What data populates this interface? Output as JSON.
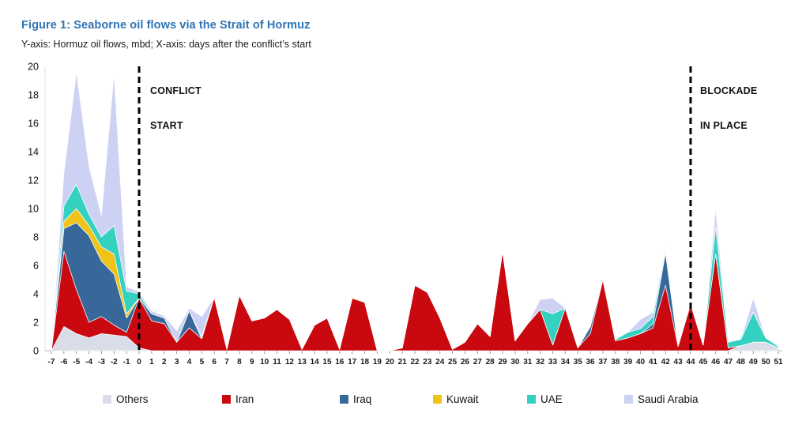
{
  "figure": {
    "title": "Figure 1: Seaborne oil flows via the Strait of Hormuz",
    "subtitle": "Y-axis: Hormuz oil flows, mbd; X-axis: days after the conflict’s start",
    "title_color": "#2e74b5"
  },
  "annotations": {
    "conflict": {
      "line1": "CONFLICT",
      "line2": "START",
      "day": 0
    },
    "blockade": {
      "line1": "BLOCKADE",
      "line2": "IN PLACE",
      "day": 44
    }
  },
  "chart_data": {
    "type": "area",
    "stacked": true,
    "title": "Figure 1: Seaborne oil flows via the Strait of Hormuz",
    "xlabel": "days after the conflict's start",
    "ylabel": "Hormuz oil flows, mbd",
    "xlim": [
      -7,
      51
    ],
    "ylim": [
      0,
      20
    ],
    "yticks": [
      0,
      2,
      4,
      6,
      8,
      10,
      12,
      14,
      16,
      18,
      20
    ],
    "grid": false,
    "legend_position": "bottom",
    "marker_lines": [
      {
        "day": 0,
        "label": "CONFLICT START"
      },
      {
        "day": 44,
        "label": "BLOCKADE IN PLACE"
      }
    ],
    "x": [
      -7,
      -6,
      -5,
      -4,
      -3,
      -2,
      -1,
      0,
      1,
      2,
      3,
      4,
      5,
      6,
      7,
      8,
      9,
      10,
      11,
      12,
      13,
      14,
      15,
      16,
      17,
      18,
      19,
      20,
      21,
      22,
      23,
      24,
      25,
      26,
      27,
      28,
      29,
      30,
      31,
      32,
      33,
      34,
      35,
      36,
      37,
      38,
      39,
      40,
      41,
      42,
      43,
      44,
      45,
      46,
      47,
      48,
      49,
      50,
      51
    ],
    "series": [
      {
        "name": "Others",
        "color": "#d9dde8",
        "values": [
          0,
          1.7,
          1.2,
          0.9,
          1.2,
          1.1,
          1.0,
          0.2,
          0,
          0,
          0,
          0,
          0,
          0,
          0,
          0,
          0,
          0,
          0,
          0,
          0,
          0,
          0,
          0,
          0,
          0,
          0,
          0,
          0,
          0,
          0,
          0,
          0,
          0,
          0,
          0,
          0,
          0,
          0,
          0,
          0,
          0,
          0,
          0,
          0,
          0,
          0,
          0,
          0,
          0,
          0,
          0,
          0,
          0,
          0,
          0.35,
          0.6,
          0.6,
          0.2
        ]
      },
      {
        "name": "Iran",
        "color": "#c9090f",
        "values": [
          0,
          5.3,
          3.1,
          1.1,
          1.2,
          0.7,
          0.3,
          3.5,
          2.1,
          1.9,
          0.6,
          1.6,
          0.85,
          3.75,
          0.1,
          3.9,
          2.1,
          2.3,
          2.9,
          2.2,
          0.1,
          1.8,
          2.3,
          0.1,
          3.7,
          3.4,
          0,
          0,
          0.2,
          4.6,
          4.1,
          2.3,
          0.1,
          0.6,
          1.9,
          1.0,
          7.0,
          0.7,
          1.9,
          2.9,
          0.4,
          3.0,
          0.2,
          1.2,
          5.0,
          0.7,
          0.9,
          1.2,
          1.6,
          4.6,
          0.3,
          3.3,
          0.4,
          6.8,
          0.2,
          0,
          0,
          0,
          0
        ]
      },
      {
        "name": "Iraq",
        "color": "#38689a",
        "values": [
          0,
          1.6,
          4.7,
          6.1,
          3.9,
          3.6,
          1.0,
          0,
          0.5,
          0.4,
          0,
          1.2,
          0,
          0,
          0,
          0,
          0,
          0,
          0,
          0,
          0,
          0,
          0,
          0,
          0,
          0,
          0,
          0,
          0,
          0,
          0,
          0,
          0,
          0,
          0,
          0,
          0,
          0,
          0,
          0,
          0,
          0,
          0,
          0.5,
          0,
          0,
          0,
          0,
          0.3,
          2.3,
          0,
          0,
          0,
          0,
          0,
          0,
          0,
          0,
          0
        ]
      },
      {
        "name": "Kuwait",
        "color": "#f0c319",
        "values": [
          0,
          0.5,
          1.0,
          0.7,
          1.0,
          1.4,
          0.3,
          0,
          0,
          0,
          0,
          0,
          0,
          0,
          0,
          0,
          0,
          0,
          0,
          0,
          0,
          0,
          0,
          0,
          0,
          0,
          0,
          0,
          0,
          0,
          0,
          0,
          0,
          0,
          0,
          0,
          0,
          0,
          0,
          0,
          0,
          0,
          0,
          0,
          0,
          0,
          0,
          0,
          0,
          0,
          0,
          0,
          0,
          0,
          0,
          0,
          0,
          0,
          0
        ]
      },
      {
        "name": "UAE",
        "color": "#34d1c1",
        "values": [
          0,
          1.1,
          1.7,
          0.8,
          0.7,
          2.0,
          1.6,
          0.3,
          0,
          0,
          0,
          0,
          0.15,
          0,
          0,
          0,
          0,
          0,
          0,
          0,
          0,
          0,
          0,
          0,
          0,
          0,
          0,
          0,
          0,
          0,
          0,
          0,
          0,
          0,
          0,
          0,
          0,
          0,
          0,
          0,
          2.2,
          0,
          0,
          0,
          0,
          0.1,
          0.4,
          0.35,
          0.5,
          0.2,
          0,
          0,
          0,
          1.9,
          0.4,
          0.45,
          2.1,
          0.3,
          0.1
        ]
      },
      {
        "name": "Saudi Arabia",
        "color": "#cdd1f4",
        "values": [
          0,
          2.3,
          7.9,
          3.4,
          1.5,
          10.7,
          0.3,
          0.15,
          0.2,
          0.15,
          0.8,
          0.2,
          1.4,
          0,
          0,
          0,
          0,
          0,
          0,
          0,
          0,
          0,
          0,
          0,
          0,
          0,
          0,
          0,
          0,
          0,
          0,
          0,
          0,
          0,
          0,
          0,
          0,
          0,
          0,
          0.7,
          1.1,
          0,
          0,
          0,
          0,
          0,
          0,
          0.65,
          0.3,
          0.2,
          0,
          0,
          0,
          1.3,
          0,
          0,
          1.0,
          0,
          0
        ]
      }
    ]
  }
}
